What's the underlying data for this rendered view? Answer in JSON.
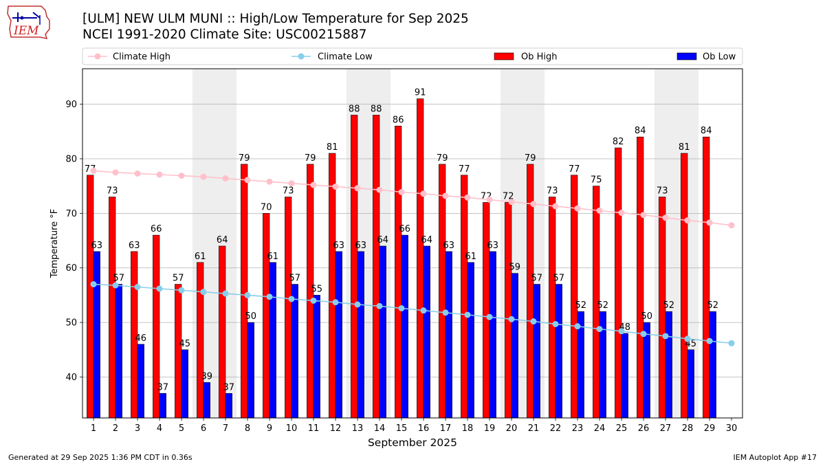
{
  "header": {
    "title": "[ULM] NEW ULM MUNI :: High/Low Temperature for Sep 2025",
    "subtitle": "NCEI 1991-2020 Climate Site: USC00215887",
    "logo_text": "IEM"
  },
  "footer": {
    "left": "Generated at 29 Sep 2025 1:36 PM CDT in 0.36s",
    "right": "IEM Autoplot App #17"
  },
  "colors": {
    "ob_high": "#ff0000",
    "ob_low": "#0000ff",
    "climate_high": "#ffc0cb",
    "climate_low": "#87ceeb",
    "weekend_band": "#eeeeee"
  },
  "chart_data": {
    "type": "bar",
    "xlabel": "September 2025",
    "ylabel": "Temperature °F",
    "ylim": [
      32.5,
      96.5
    ],
    "xlim": [
      0.5,
      30.5
    ],
    "yticks": [
      40,
      50,
      60,
      70,
      80,
      90
    ],
    "categories": [
      "1",
      "2",
      "3",
      "4",
      "5",
      "6",
      "7",
      "8",
      "9",
      "10",
      "11",
      "12",
      "13",
      "14",
      "15",
      "16",
      "17",
      "18",
      "19",
      "20",
      "21",
      "22",
      "23",
      "24",
      "25",
      "26",
      "27",
      "28",
      "29",
      "30"
    ],
    "weekend_bands": [
      [
        6,
        7
      ],
      [
        13,
        14
      ],
      [
        20,
        21
      ],
      [
        27,
        28
      ]
    ],
    "grid": "horizontal",
    "legend_position": "top",
    "series": [
      {
        "name": "Ob High",
        "kind": "bar",
        "values": [
          77,
          73,
          63,
          66,
          57,
          61,
          64,
          79,
          70,
          73,
          79,
          81,
          88,
          88,
          86,
          91,
          79,
          77,
          72,
          72,
          79,
          73,
          77,
          75,
          82,
          84,
          73,
          81,
          84,
          null
        ]
      },
      {
        "name": "Ob Low",
        "kind": "bar",
        "values": [
          63,
          57,
          46,
          37,
          45,
          39,
          37,
          50,
          61,
          57,
          55,
          63,
          63,
          64,
          66,
          64,
          63,
          61,
          63,
          59,
          57,
          57,
          52,
          52,
          48,
          50,
          52,
          45,
          52,
          null
        ]
      },
      {
        "name": "Climate High",
        "kind": "line",
        "values": [
          77.8,
          77.5,
          77.3,
          77.1,
          76.9,
          76.7,
          76.4,
          76.1,
          75.8,
          75.5,
          75.2,
          74.9,
          74.6,
          74.3,
          73.9,
          73.6,
          73.2,
          72.9,
          72.5,
          72.1,
          71.7,
          71.3,
          70.9,
          70.5,
          70.1,
          69.7,
          69.2,
          68.7,
          68.3,
          67.8
        ]
      },
      {
        "name": "Climate Low",
        "kind": "line",
        "values": [
          57.0,
          56.8,
          56.5,
          56.2,
          55.9,
          55.6,
          55.3,
          55.0,
          54.7,
          54.3,
          54.0,
          53.7,
          53.3,
          53.0,
          52.6,
          52.2,
          51.8,
          51.4,
          51.0,
          50.6,
          50.2,
          49.7,
          49.3,
          48.8,
          48.4,
          47.9,
          47.5,
          47.0,
          46.6,
          46.2
        ]
      }
    ]
  }
}
